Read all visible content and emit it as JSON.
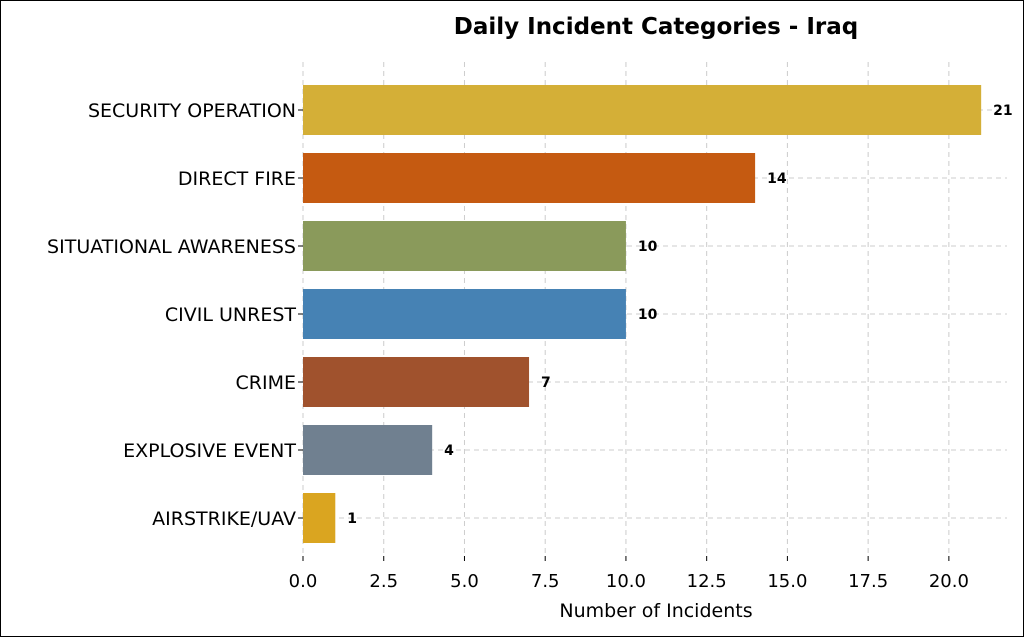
{
  "chart_data": {
    "type": "bar",
    "orientation": "horizontal",
    "title": "Daily Incident Categories - Iraq",
    "xlabel": "Number of Incidents",
    "ylabel": "",
    "xlim": [
      0,
      21.8
    ],
    "xticks": [
      0.0,
      2.5,
      5.0,
      7.5,
      10.0,
      12.5,
      15.0,
      17.5,
      20.0
    ],
    "xtick_labels": [
      "0.0",
      "2.5",
      "5.0",
      "7.5",
      "10.0",
      "12.5",
      "15.0",
      "17.5",
      "20.0"
    ],
    "grid": true,
    "categories": [
      "SECURITY OPERATION",
      "DIRECT FIRE",
      "SITUATIONAL AWARENESS",
      "CIVIL UNREST",
      "CRIME",
      "EXPLOSIVE EVENT",
      "AIRSTRIKE/UAV"
    ],
    "values": [
      21,
      14,
      10,
      10,
      7,
      4,
      1
    ],
    "data_labels": [
      "21",
      "14",
      "10",
      "10",
      "7",
      "4",
      "1"
    ],
    "colors": [
      "#D4AF37",
      "#C55A11",
      "#8A9A5B",
      "#4682B4",
      "#A0522D",
      "#708090",
      "#DAA520"
    ]
  }
}
